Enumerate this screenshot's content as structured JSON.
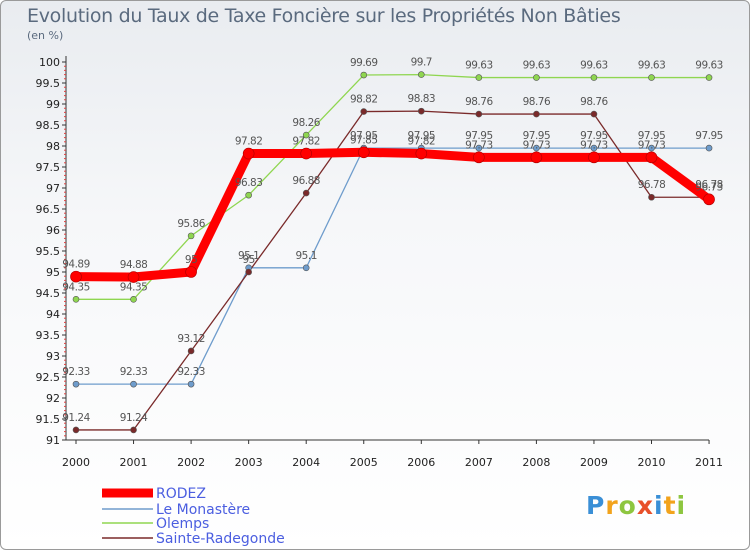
{
  "chart_data": {
    "type": "line",
    "title": "Evolution du Taux de Taxe Foncière sur les Propriétés Non Bâties",
    "ylabel": "(en %)",
    "xlabel": "",
    "ylim": [
      91,
      100
    ],
    "yticks": [
      "91",
      "91.5",
      "92",
      "92.5",
      "93",
      "93.5",
      "94",
      "94.5",
      "95",
      "95.5",
      "96",
      "96.5",
      "97",
      "97.5",
      "98",
      "98.5",
      "99",
      "99.5",
      "100"
    ],
    "categories": [
      "2000",
      "2001",
      "2002",
      "2003",
      "2004",
      "2005",
      "2006",
      "2007",
      "2008",
      "2009",
      "2010",
      "2011"
    ],
    "series": [
      {
        "name": "RODEZ",
        "color": "#ff0000",
        "values": [
          94.89,
          94.88,
          95,
          97.82,
          97.82,
          97.85,
          97.82,
          97.73,
          97.73,
          97.73,
          97.73,
          96.73
        ]
      },
      {
        "name": "Le Monastère",
        "color": "#6e9ccc",
        "values": [
          92.33,
          92.33,
          92.33,
          95.1,
          95.1,
          97.95,
          97.95,
          97.95,
          97.95,
          97.95,
          97.95,
          97.95
        ]
      },
      {
        "name": "Olemps",
        "color": "#8fd650",
        "values": [
          94.35,
          94.35,
          95.86,
          96.83,
          98.26,
          99.69,
          99.7,
          99.63,
          99.63,
          99.63,
          99.63,
          99.63
        ]
      },
      {
        "name": "Sainte-Radegonde",
        "color": "#7a2a2a",
        "values": [
          91.24,
          91.24,
          93.12,
          95,
          96.88,
          98.82,
          98.83,
          98.76,
          98.76,
          98.76,
          96.78,
          96.78
        ]
      }
    ],
    "labels": {
      "RODEZ": [
        "94.89",
        "94.88",
        "95",
        "97.82",
        "97.82",
        "97.85",
        "97.82",
        "97.73",
        "97.73",
        "97.73",
        "97.73",
        "96.73"
      ],
      "Le Monastère": [
        "92.33",
        "92.33",
        "92.33",
        "95.1",
        "95.1",
        "97.95",
        "97.95",
        "97.95",
        "97.95",
        "97.95",
        "97.95",
        "97.95"
      ],
      "Olemps": [
        "94.35",
        "94.35",
        "95.86",
        "96.83",
        "98.26",
        "99.69",
        "99.7",
        "99.63",
        "99.63",
        "99.63",
        "99.63",
        "99.63"
      ],
      "Sainte-Radegonde": [
        "91.24",
        "91.24",
        "93.12",
        "95",
        "96.88",
        "98.82",
        "98.83",
        "98.76",
        "98.76",
        "98.76",
        "96.78",
        "96.78"
      ]
    },
    "legend": [
      "RODEZ",
      "Le Monastère",
      "Olemps",
      "Sainte-Radegonde"
    ],
    "legend_position": "bottom-left",
    "grid": false
  },
  "logo": {
    "letters": [
      "P",
      "r",
      "o",
      "x",
      "i",
      "t",
      "i"
    ],
    "colors": [
      "#3a8fd6",
      "#f2a31c",
      "#8ec63f",
      "#e8502a",
      "#3a8fd6",
      "#f2a31c",
      "#8ec63f"
    ]
  }
}
